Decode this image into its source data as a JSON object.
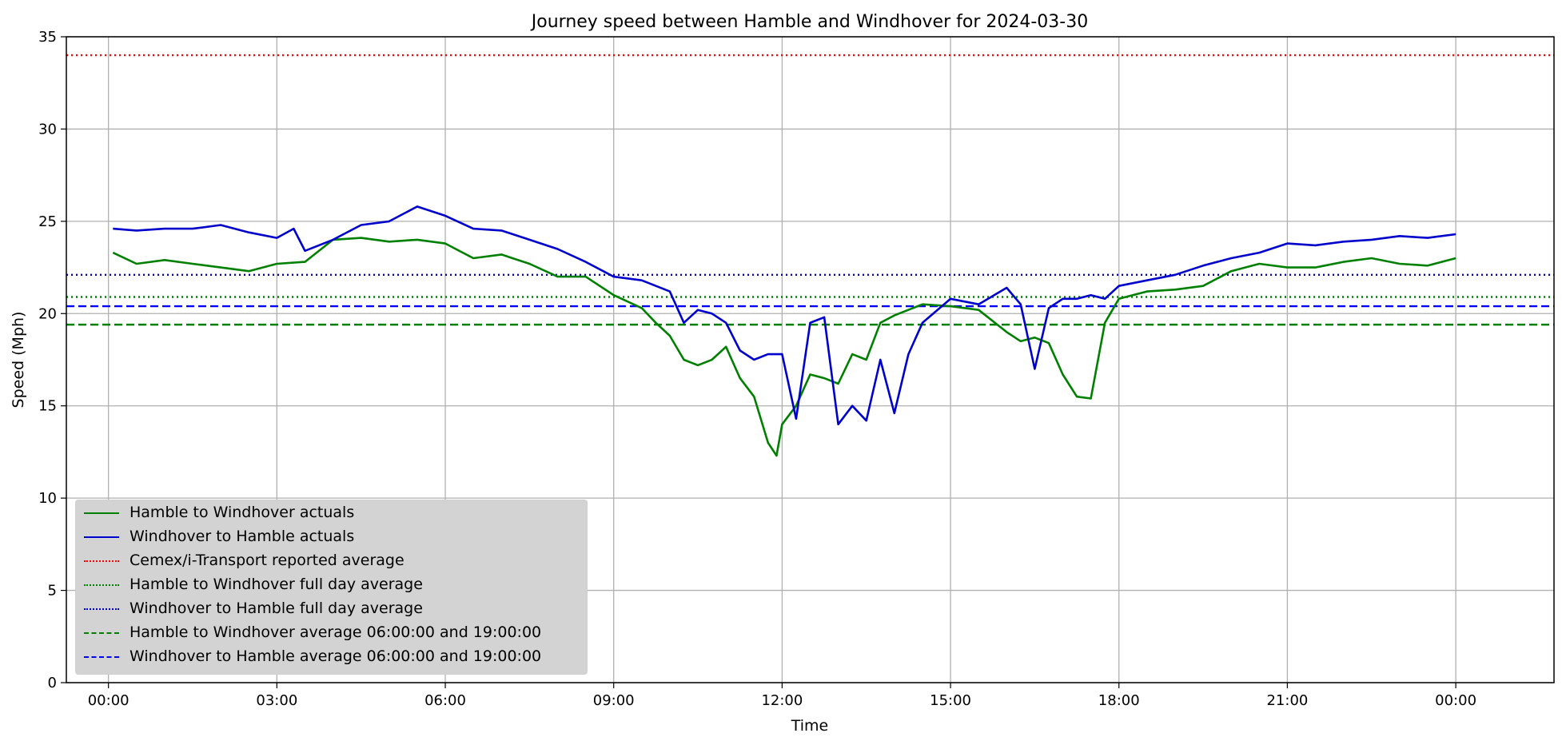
{
  "chart_data": {
    "type": "line",
    "title": "Journey speed between Hamble and Windhover for 2024-03-30",
    "xlabel": "Time",
    "ylabel": "Speed  (Mph)",
    "xlim": [
      -0.75,
      25.75
    ],
    "ylim": [
      0,
      35
    ],
    "x_unit": "hours",
    "x_ticks": [
      0,
      3,
      6,
      9,
      12,
      15,
      18,
      21,
      24
    ],
    "x_tick_labels": [
      "00:00",
      "03:00",
      "06:00",
      "09:00",
      "12:00",
      "15:00",
      "18:00",
      "21:00",
      "00:00"
    ],
    "y_ticks": [
      0,
      5,
      10,
      15,
      20,
      25,
      30,
      35
    ],
    "y_tick_labels": [
      "0",
      "5",
      "10",
      "15",
      "20",
      "25",
      "30",
      "35"
    ],
    "grid": true,
    "legend_position": "lower-left",
    "series": [
      {
        "name": "Hamble to Windhover actuals",
        "color": "#008000",
        "style": "solid",
        "x": [
          0.08,
          0.5,
          1,
          1.5,
          2,
          2.5,
          3,
          3.5,
          4,
          4.5,
          5,
          5.5,
          6,
          6.5,
          7,
          7.5,
          8,
          8.5,
          9,
          9.5,
          9.75,
          10,
          10.25,
          10.5,
          10.75,
          11,
          11.25,
          11.5,
          11.75,
          11.9,
          12,
          12.25,
          12.5,
          12.75,
          13,
          13.25,
          13.5,
          13.75,
          14,
          14.5,
          15,
          15.5,
          16,
          16.25,
          16.5,
          16.75,
          17,
          17.25,
          17.5,
          17.75,
          18,
          18.5,
          19,
          19.5,
          20,
          20.5,
          21,
          21.5,
          22,
          22.5,
          23,
          23.5,
          24
        ],
        "y": [
          23.3,
          22.7,
          22.9,
          22.7,
          22.5,
          22.3,
          22.7,
          22.8,
          24,
          24.1,
          23.9,
          24,
          23.8,
          23,
          23.2,
          22.7,
          22,
          22,
          21,
          20.3,
          19.5,
          18.8,
          17.5,
          17.2,
          17.5,
          18.2,
          16.5,
          15.5,
          13,
          12.3,
          14,
          15,
          16.7,
          16.5,
          16.2,
          17.8,
          17.5,
          19.5,
          19.9,
          20.5,
          20.4,
          20.2,
          19,
          18.5,
          18.7,
          18.4,
          16.7,
          15.5,
          15.4,
          19.5,
          20.8,
          21.2,
          21.3,
          21.5,
          22.3,
          22.7,
          22.5,
          22.5,
          22.8,
          23,
          22.7,
          22.6,
          23
        ]
      },
      {
        "name": "Windhover to Hamble actuals",
        "color": "#0000cd",
        "style": "solid",
        "x": [
          0.08,
          0.5,
          1,
          1.5,
          2,
          2.5,
          3,
          3.3,
          3.5,
          4,
          4.5,
          5,
          5.5,
          6,
          6.5,
          7,
          7.5,
          8,
          8.5,
          9,
          9.5,
          10,
          10.25,
          10.5,
          10.75,
          11,
          11.25,
          11.5,
          11.75,
          12,
          12.25,
          12.5,
          12.75,
          13,
          13.25,
          13.5,
          13.75,
          14,
          14.25,
          14.5,
          15,
          15.5,
          16,
          16.25,
          16.5,
          16.75,
          17,
          17.25,
          17.5,
          17.75,
          18,
          18.5,
          19,
          19.5,
          20,
          20.5,
          21,
          21.5,
          22,
          22.5,
          23,
          23.5,
          24
        ],
        "y": [
          24.6,
          24.5,
          24.6,
          24.6,
          24.8,
          24.4,
          24.1,
          24.6,
          23.4,
          24,
          24.8,
          25,
          25.8,
          25.3,
          24.6,
          24.5,
          24,
          23.5,
          22.8,
          22,
          21.8,
          21.2,
          19.5,
          20.2,
          20,
          19.5,
          18,
          17.5,
          17.8,
          17.8,
          14.3,
          19.5,
          19.8,
          14,
          15,
          14.2,
          17.5,
          14.6,
          17.8,
          19.5,
          20.8,
          20.5,
          21.4,
          20.5,
          17,
          20.3,
          20.8,
          20.8,
          21,
          20.8,
          21.5,
          21.8,
          22.1,
          22.6,
          23,
          23.3,
          23.8,
          23.7,
          23.9,
          24,
          24.2,
          24.1,
          24.3
        ]
      }
    ],
    "hlines": [
      {
        "name": "Cemex/i-Transport reported average",
        "y": 34,
        "color": "#ff0000",
        "style": "dotted"
      },
      {
        "name": "Hamble to Windhover full day average",
        "y": 20.9,
        "color": "#008000",
        "style": "dotted"
      },
      {
        "name": "Windhover to Hamble full day average",
        "y": 22.1,
        "color": "#0000cd",
        "style": "dotted"
      },
      {
        "name": "Hamble to Windhover average 06:00:00 and 19:00:00",
        "y": 19.4,
        "color": "#008000",
        "style": "dashed"
      },
      {
        "name": "Windhover to Hamble average 06:00:00 and 19:00:00",
        "y": 20.4,
        "color": "#0000ff",
        "style": "dashed"
      }
    ]
  }
}
